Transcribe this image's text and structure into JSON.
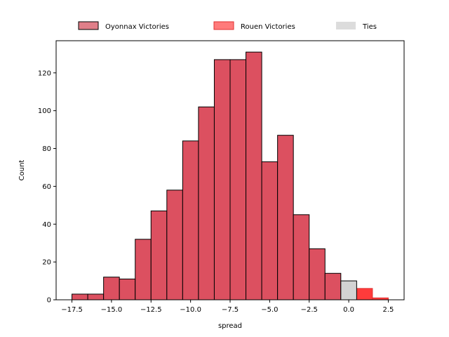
{
  "chart_data": {
    "type": "bar",
    "title": "",
    "xlabel": "spread",
    "ylabel": "Count",
    "xlim": [
      -18.5,
      3.5
    ],
    "ylim": [
      0,
      137
    ],
    "x_ticks": [
      -17.5,
      -15.0,
      -12.5,
      -10.0,
      -7.5,
      -5.0,
      -2.5,
      0.0,
      2.5
    ],
    "x_tick_labels": [
      "−17.5",
      "−15.0",
      "−12.5",
      "−10.0",
      "−7.5",
      "−5.0",
      "−2.5",
      "0.0",
      "2.5"
    ],
    "y_ticks": [
      0,
      20,
      40,
      60,
      80,
      100,
      120
    ],
    "y_tick_labels": [
      "0",
      "20",
      "40",
      "60",
      "80",
      "100",
      "120"
    ],
    "grid": false,
    "legend_position": "top-center, outside plot",
    "series": [
      {
        "name": "Oyonnax Victories",
        "color": "#dc5060",
        "legend_color": "#e07f89",
        "edge_color": "#000000",
        "bins": [
          {
            "x0": -17.5,
            "x1": -16.5,
            "count": 3
          },
          {
            "x0": -16.5,
            "x1": -15.5,
            "count": 3
          },
          {
            "x0": -15.5,
            "x1": -14.5,
            "count": 12
          },
          {
            "x0": -14.5,
            "x1": -13.5,
            "count": 11
          },
          {
            "x0": -13.5,
            "x1": -12.5,
            "count": 32
          },
          {
            "x0": -12.5,
            "x1": -11.5,
            "count": 47
          },
          {
            "x0": -11.5,
            "x1": -10.5,
            "count": 58
          },
          {
            "x0": -10.5,
            "x1": -9.5,
            "count": 84
          },
          {
            "x0": -9.5,
            "x1": -8.5,
            "count": 102
          },
          {
            "x0": -8.5,
            "x1": -7.5,
            "count": 127
          },
          {
            "x0": -7.5,
            "x1": -6.5,
            "count": 127
          },
          {
            "x0": -6.5,
            "x1": -5.5,
            "count": 131
          },
          {
            "x0": -5.5,
            "x1": -4.5,
            "count": 73
          },
          {
            "x0": -4.5,
            "x1": -3.5,
            "count": 87
          },
          {
            "x0": -3.5,
            "x1": -2.5,
            "count": 45
          },
          {
            "x0": -2.5,
            "x1": -1.5,
            "count": 27
          },
          {
            "x0": -1.5,
            "x1": -0.5,
            "count": 14
          }
        ]
      },
      {
        "name": "Rouen Victories",
        "color": "#ff3b3b",
        "legend_color": "#ff7b7b",
        "edge_color": "#e03030",
        "bins": [
          {
            "x0": 0.5,
            "x1": 1.5,
            "count": 6
          },
          {
            "x0": 1.5,
            "x1": 2.5,
            "count": 1
          }
        ]
      },
      {
        "name": "Ties",
        "color": "#d3d3d3",
        "legend_color": "#dcdcdc",
        "edge_color": "#000000",
        "bins": [
          {
            "x0": -0.5,
            "x1": 0.5,
            "count": 10
          }
        ]
      }
    ]
  }
}
